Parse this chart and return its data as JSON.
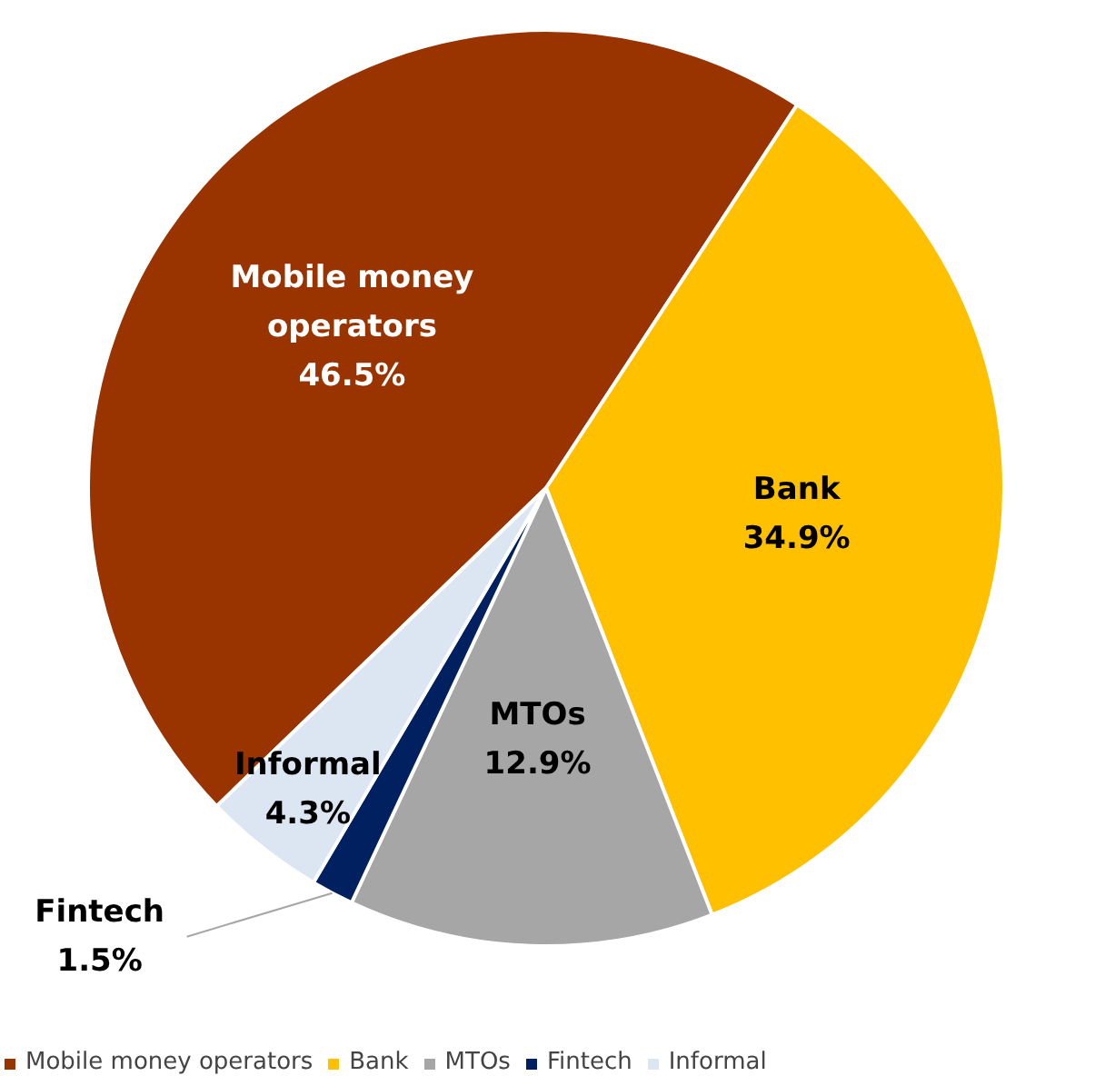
{
  "chart_data": {
    "type": "pie",
    "categories": [
      "Mobile money operators",
      "Bank",
      "MTOs",
      "Fintech",
      "Informal"
    ],
    "values": [
      46.5,
      34.9,
      12.9,
      1.5,
      4.3
    ],
    "colors": [
      "#993300",
      "#ffc000",
      "#a6a6a6",
      "#002060",
      "#dce6f2"
    ],
    "value_labels": [
      "46.5%",
      "34.9%",
      "12.9%",
      "1.5%",
      "4.3%"
    ],
    "legend": "bottom"
  }
}
